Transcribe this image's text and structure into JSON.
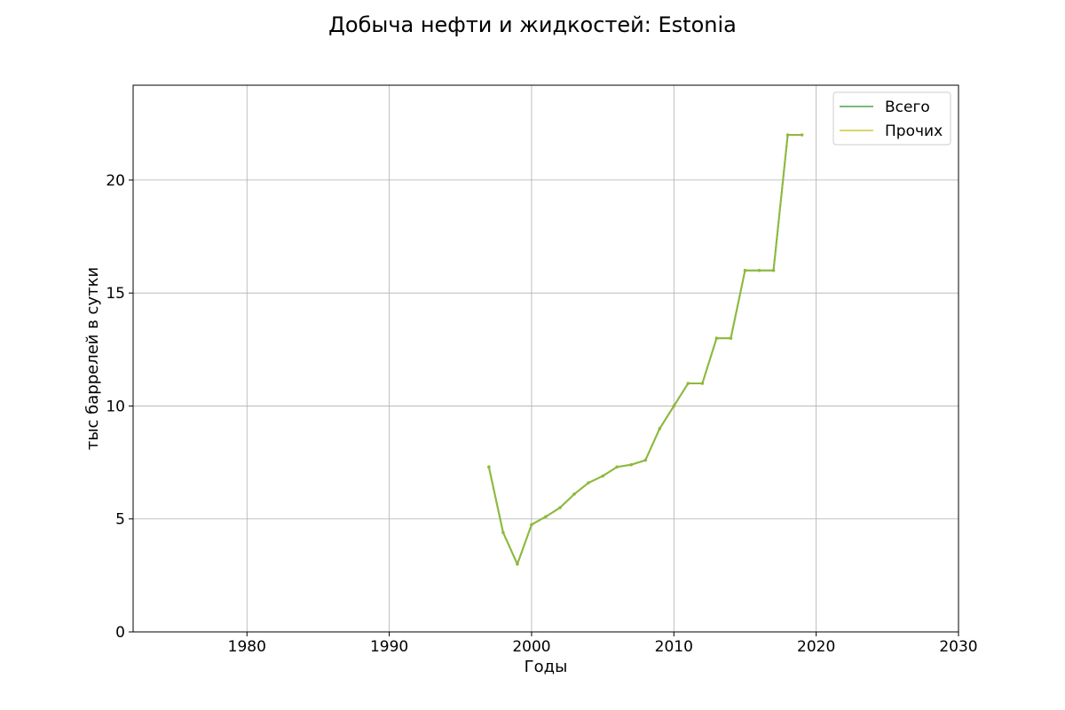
{
  "chart_data": {
    "type": "line",
    "title": "Добыча нефти и жидкостей: Estonia",
    "xlabel": "Годы",
    "ylabel": "тыс баррелей в сутки",
    "xlim": [
      1972,
      2030
    ],
    "ylim": [
      0,
      24.2
    ],
    "xticks": [
      1980,
      1990,
      2000,
      2010,
      2020,
      2030
    ],
    "yticks": [
      0,
      5,
      10,
      15,
      20
    ],
    "grid": true,
    "legend_position": "top-right",
    "series": [
      {
        "name": "Всего",
        "color": "#7ab87a",
        "x": [
          1997,
          1998,
          1999,
          2000,
          2001,
          2002,
          2003,
          2004,
          2005,
          2006,
          2007,
          2008,
          2009,
          2010,
          2011,
          2012,
          2013,
          2014,
          2015,
          2016,
          2017,
          2018,
          2019
        ],
        "y": [
          7.3,
          4.4,
          3.0,
          4.75,
          5.1,
          5.5,
          6.1,
          6.6,
          6.9,
          7.3,
          7.4,
          7.6,
          9.0,
          10.0,
          11.0,
          11.0,
          13.0,
          13.0,
          16.0,
          16.0,
          16.0,
          22.0,
          22.0
        ]
      },
      {
        "name": "Прочих",
        "color": "#d7d86c",
        "x": [
          1997,
          1998,
          1999,
          2000,
          2001,
          2002,
          2003,
          2004,
          2005,
          2006,
          2007,
          2008,
          2009,
          2010,
          2011,
          2012,
          2013,
          2014,
          2015,
          2016,
          2017,
          2018,
          2019
        ],
        "y": [
          7.3,
          4.4,
          3.0,
          4.75,
          5.1,
          5.5,
          6.1,
          6.6,
          6.9,
          7.3,
          7.4,
          7.6,
          9.0,
          10.0,
          11.0,
          11.0,
          13.0,
          13.0,
          16.0,
          16.0,
          16.0,
          22.0,
          22.0
        ]
      }
    ],
    "combined_line_color": "#8fb93c"
  }
}
